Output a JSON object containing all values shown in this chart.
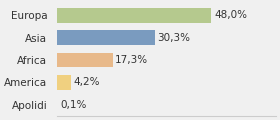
{
  "categories": [
    "Europa",
    "Asia",
    "Africa",
    "America",
    "Apolidi"
  ],
  "values": [
    48.0,
    30.3,
    17.3,
    4.2,
    0.1
  ],
  "labels": [
    "48,0%",
    "30,3%",
    "17,3%",
    "4,2%",
    "0,1%"
  ],
  "bar_colors": [
    "#b5c98e",
    "#7a9bbf",
    "#e8b98a",
    "#f0d080",
    "#d0d0d0"
  ],
  "background_color": "#f0f0f0",
  "label_fontsize": 7.5,
  "category_fontsize": 7.5
}
